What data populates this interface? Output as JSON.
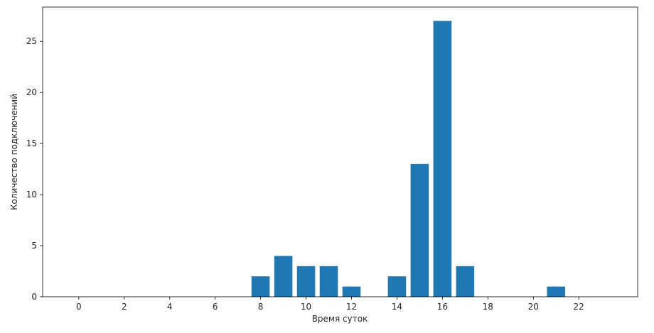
{
  "chart_data": {
    "type": "bar",
    "title": "",
    "xlabel": "Время суток",
    "ylabel": "Количество подключений",
    "x": [
      0,
      1,
      2,
      3,
      4,
      5,
      6,
      7,
      8,
      9,
      10,
      11,
      12,
      13,
      14,
      15,
      16,
      17,
      18,
      19,
      20,
      21,
      22,
      23
    ],
    "values": [
      0,
      0,
      0,
      0,
      0,
      0,
      0,
      0,
      2,
      4,
      3,
      3,
      1,
      0,
      2,
      13,
      27,
      3,
      0,
      0,
      0,
      1,
      0,
      0
    ],
    "xticks": [
      "0",
      "2",
      "4",
      "6",
      "8",
      "10",
      "12",
      "14",
      "16",
      "18",
      "20",
      "22"
    ],
    "yticks": [
      "0",
      "5",
      "10",
      "15",
      "20",
      "25"
    ],
    "xlim": [
      -1.59,
      24.59
    ],
    "ylim": [
      0,
      28.35
    ],
    "grid": false,
    "bar_color": "#1f77b4"
  }
}
